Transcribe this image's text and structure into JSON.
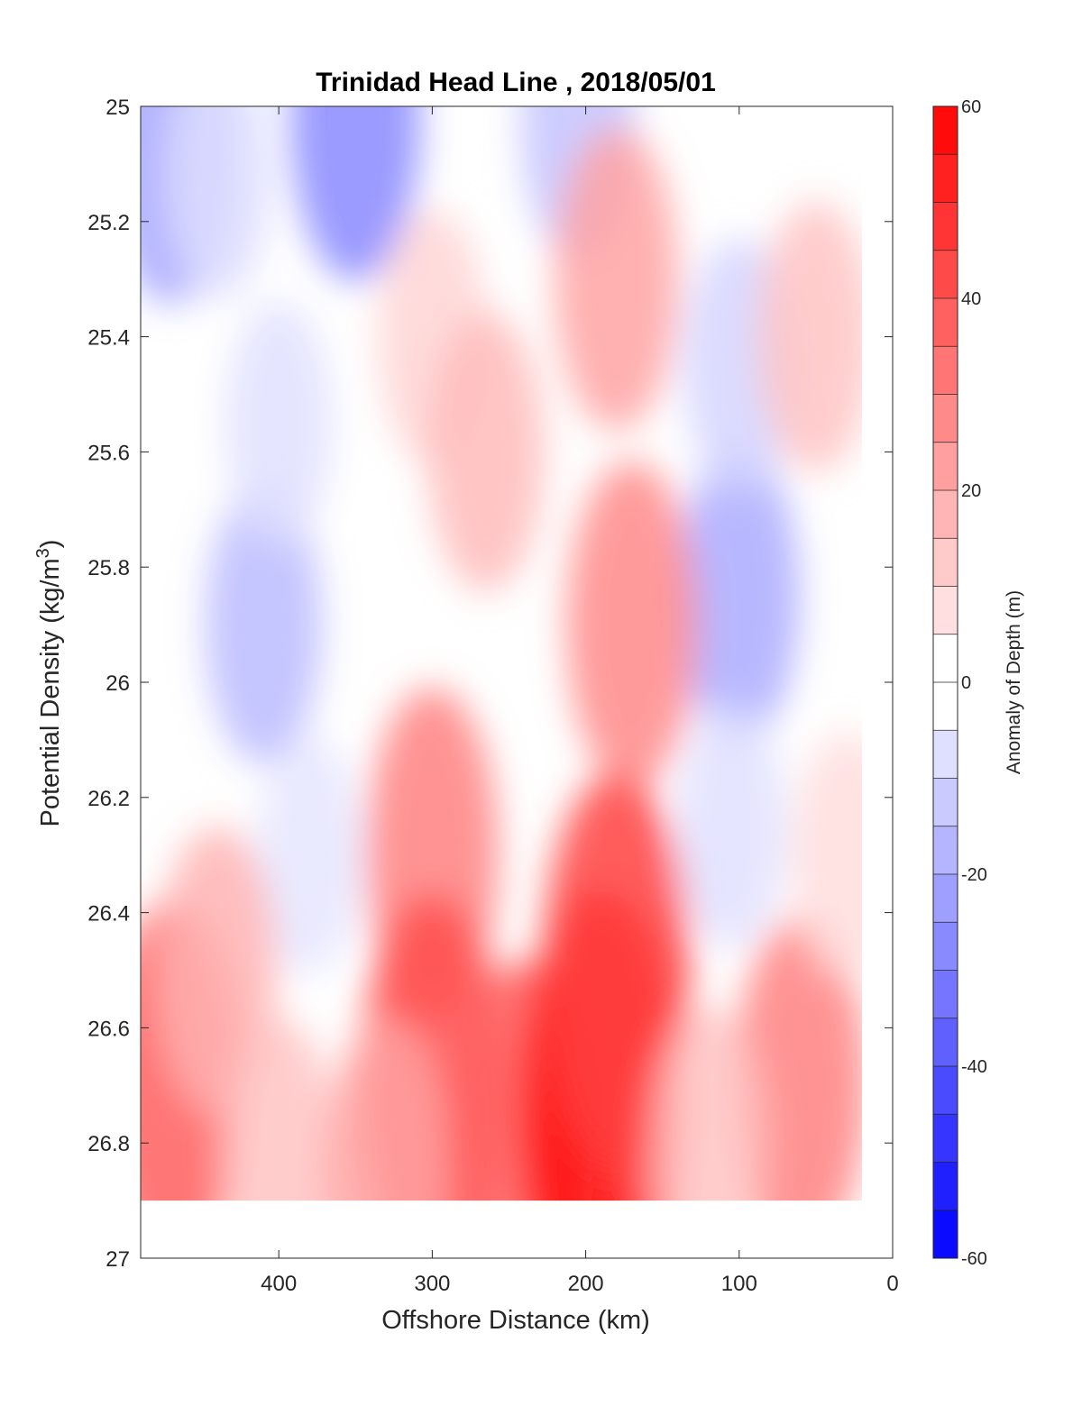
{
  "chart_data": {
    "type": "contourf",
    "title": "Trinidad Head Line , 2018/05/01",
    "xlabel": "Offshore Distance (km)",
    "ylabel_main": "Potential Density (kg/m",
    "ylabel_sup": "3",
    "ylabel_close": ")",
    "x_axis": {
      "lim": [
        490,
        0
      ],
      "reversed": true,
      "ticks": [
        400,
        300,
        200,
        100,
        0
      ],
      "tick_labels": [
        "400",
        "300",
        "200",
        "100",
        "0"
      ]
    },
    "y_axis": {
      "lim": [
        25,
        27
      ],
      "reversed": true,
      "ticks": [
        25,
        25.2,
        25.4,
        25.6,
        25.8,
        26,
        26.2,
        26.4,
        26.6,
        26.8,
        27
      ],
      "tick_labels": [
        "25",
        "25.2",
        "25.4",
        "25.6",
        "25.8",
        "26",
        "26.2",
        "26.4",
        "26.6",
        "26.8",
        "27"
      ]
    },
    "colorbar": {
      "label": "Anomaly of Depth (m)",
      "lim": [
        -60,
        60
      ],
      "level_step": 5,
      "ticks": [
        60,
        40,
        20,
        0,
        -20,
        -40,
        -60
      ],
      "tick_labels": [
        "60",
        "40",
        "20",
        "0",
        "-20",
        "-40",
        "-60"
      ],
      "color_negative": "#0000ff",
      "color_zero": "#ffffff",
      "color_positive": "#ff0000"
    },
    "data_coverage": {
      "x_range": [
        490,
        20
      ],
      "y_range": [
        25,
        26.9
      ]
    },
    "features": [
      {
        "x": 470,
        "y": 25.08,
        "value": -22
      },
      {
        "x": 440,
        "y": 25.12,
        "value": -8
      },
      {
        "x": 350,
        "y": 25.02,
        "value": -28
      },
      {
        "x": 205,
        "y": 25.03,
        "value": -14
      },
      {
        "x": 410,
        "y": 25.9,
        "value": -16
      },
      {
        "x": 400,
        "y": 25.55,
        "value": -7
      },
      {
        "x": 380,
        "y": 26.3,
        "value": -6
      },
      {
        "x": 100,
        "y": 25.85,
        "value": -20
      },
      {
        "x": 100,
        "y": 25.45,
        "value": -10
      },
      {
        "x": 105,
        "y": 26.25,
        "value": -7
      },
      {
        "x": 300,
        "y": 25.4,
        "value": 10
      },
      {
        "x": 265,
        "y": 25.6,
        "value": 16
      },
      {
        "x": 180,
        "y": 25.3,
        "value": 22
      },
      {
        "x": 170,
        "y": 25.9,
        "value": 28
      },
      {
        "x": 300,
        "y": 26.3,
        "value": 30
      },
      {
        "x": 300,
        "y": 26.7,
        "value": 42
      },
      {
        "x": 240,
        "y": 26.8,
        "value": 38
      },
      {
        "x": 190,
        "y": 26.75,
        "value": 58
      },
      {
        "x": 180,
        "y": 26.5,
        "value": 45
      },
      {
        "x": 470,
        "y": 26.7,
        "value": 38
      },
      {
        "x": 440,
        "y": 26.5,
        "value": 18
      },
      {
        "x": 60,
        "y": 26.7,
        "value": 30
      },
      {
        "x": 50,
        "y": 25.4,
        "value": 14
      },
      {
        "x": 30,
        "y": 26.3,
        "value": 8
      },
      {
        "x": 400,
        "y": 26.82,
        "value": 14
      },
      {
        "x": 330,
        "y": 26.85,
        "value": 22
      },
      {
        "x": 120,
        "y": 26.8,
        "value": 14
      }
    ]
  }
}
